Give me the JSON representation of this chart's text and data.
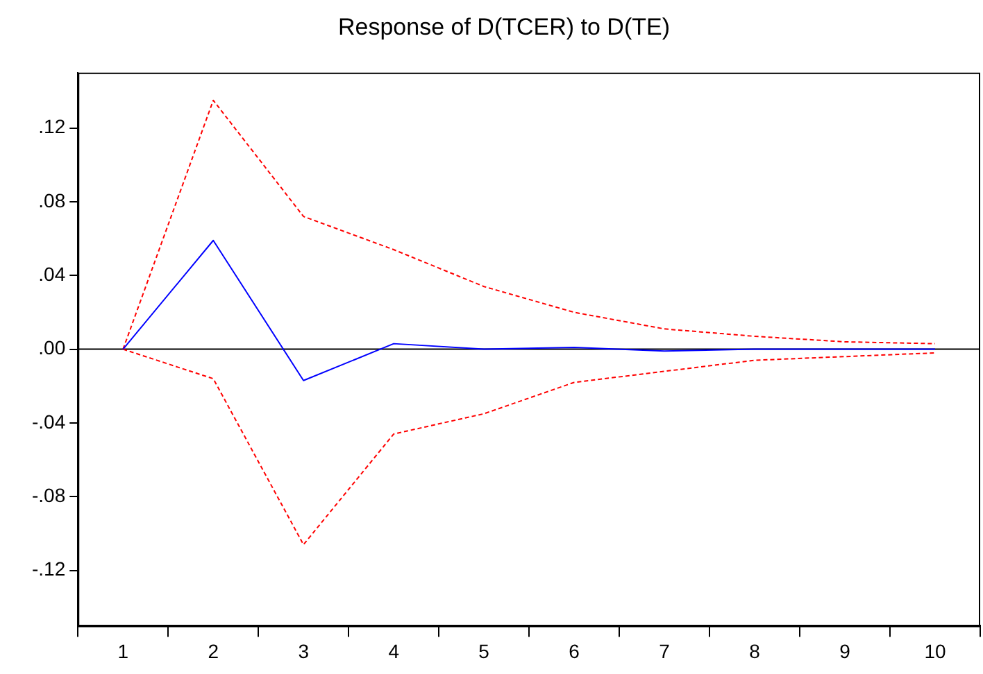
{
  "chart_data": {
    "type": "line",
    "title": "Response of D(TCER) to D(TE)",
    "categories": [
      "1",
      "2",
      "3",
      "4",
      "5",
      "6",
      "7",
      "8",
      "9",
      "10"
    ],
    "series": [
      {
        "color": "#0000ff",
        "values": [
          0,
          0.059,
          -0.017,
          0.003,
          0,
          0.001,
          -0.001,
          0,
          0,
          0
        ],
        "line_style": "solid"
      },
      {
        "color": "#ff0000",
        "values": [
          0,
          0.135,
          0.072,
          0.054,
          0.034,
          0.02,
          0.011,
          0.007,
          0.004,
          0.003
        ],
        "line_style": "dashed"
      },
      {
        "color": "#ff0000",
        "values": [
          0,
          -0.016,
          -0.106,
          -0.046,
          -0.035,
          -0.018,
          -0.012,
          -0.006,
          -0.004,
          -0.002
        ],
        "line_style": "dashed"
      }
    ],
    "ylim": [
      -0.15,
      0.15
    ],
    "yticks": [
      {
        "value": -0.12,
        "label": "-.12"
      },
      {
        "value": -0.08,
        "label": "-.08"
      },
      {
        "value": -0.04,
        "label": "-.04"
      },
      {
        "value": 0,
        "label": ".00"
      },
      {
        "value": 0.04,
        "label": ".04"
      },
      {
        "value": 0.08,
        "label": ".08"
      },
      {
        "value": 0.12,
        "label": ".12"
      }
    ],
    "ref_lines": [
      {
        "axis": "y",
        "value": 0,
        "color": "#000000"
      }
    ],
    "grid": false,
    "legend": false,
    "marker": "none"
  }
}
